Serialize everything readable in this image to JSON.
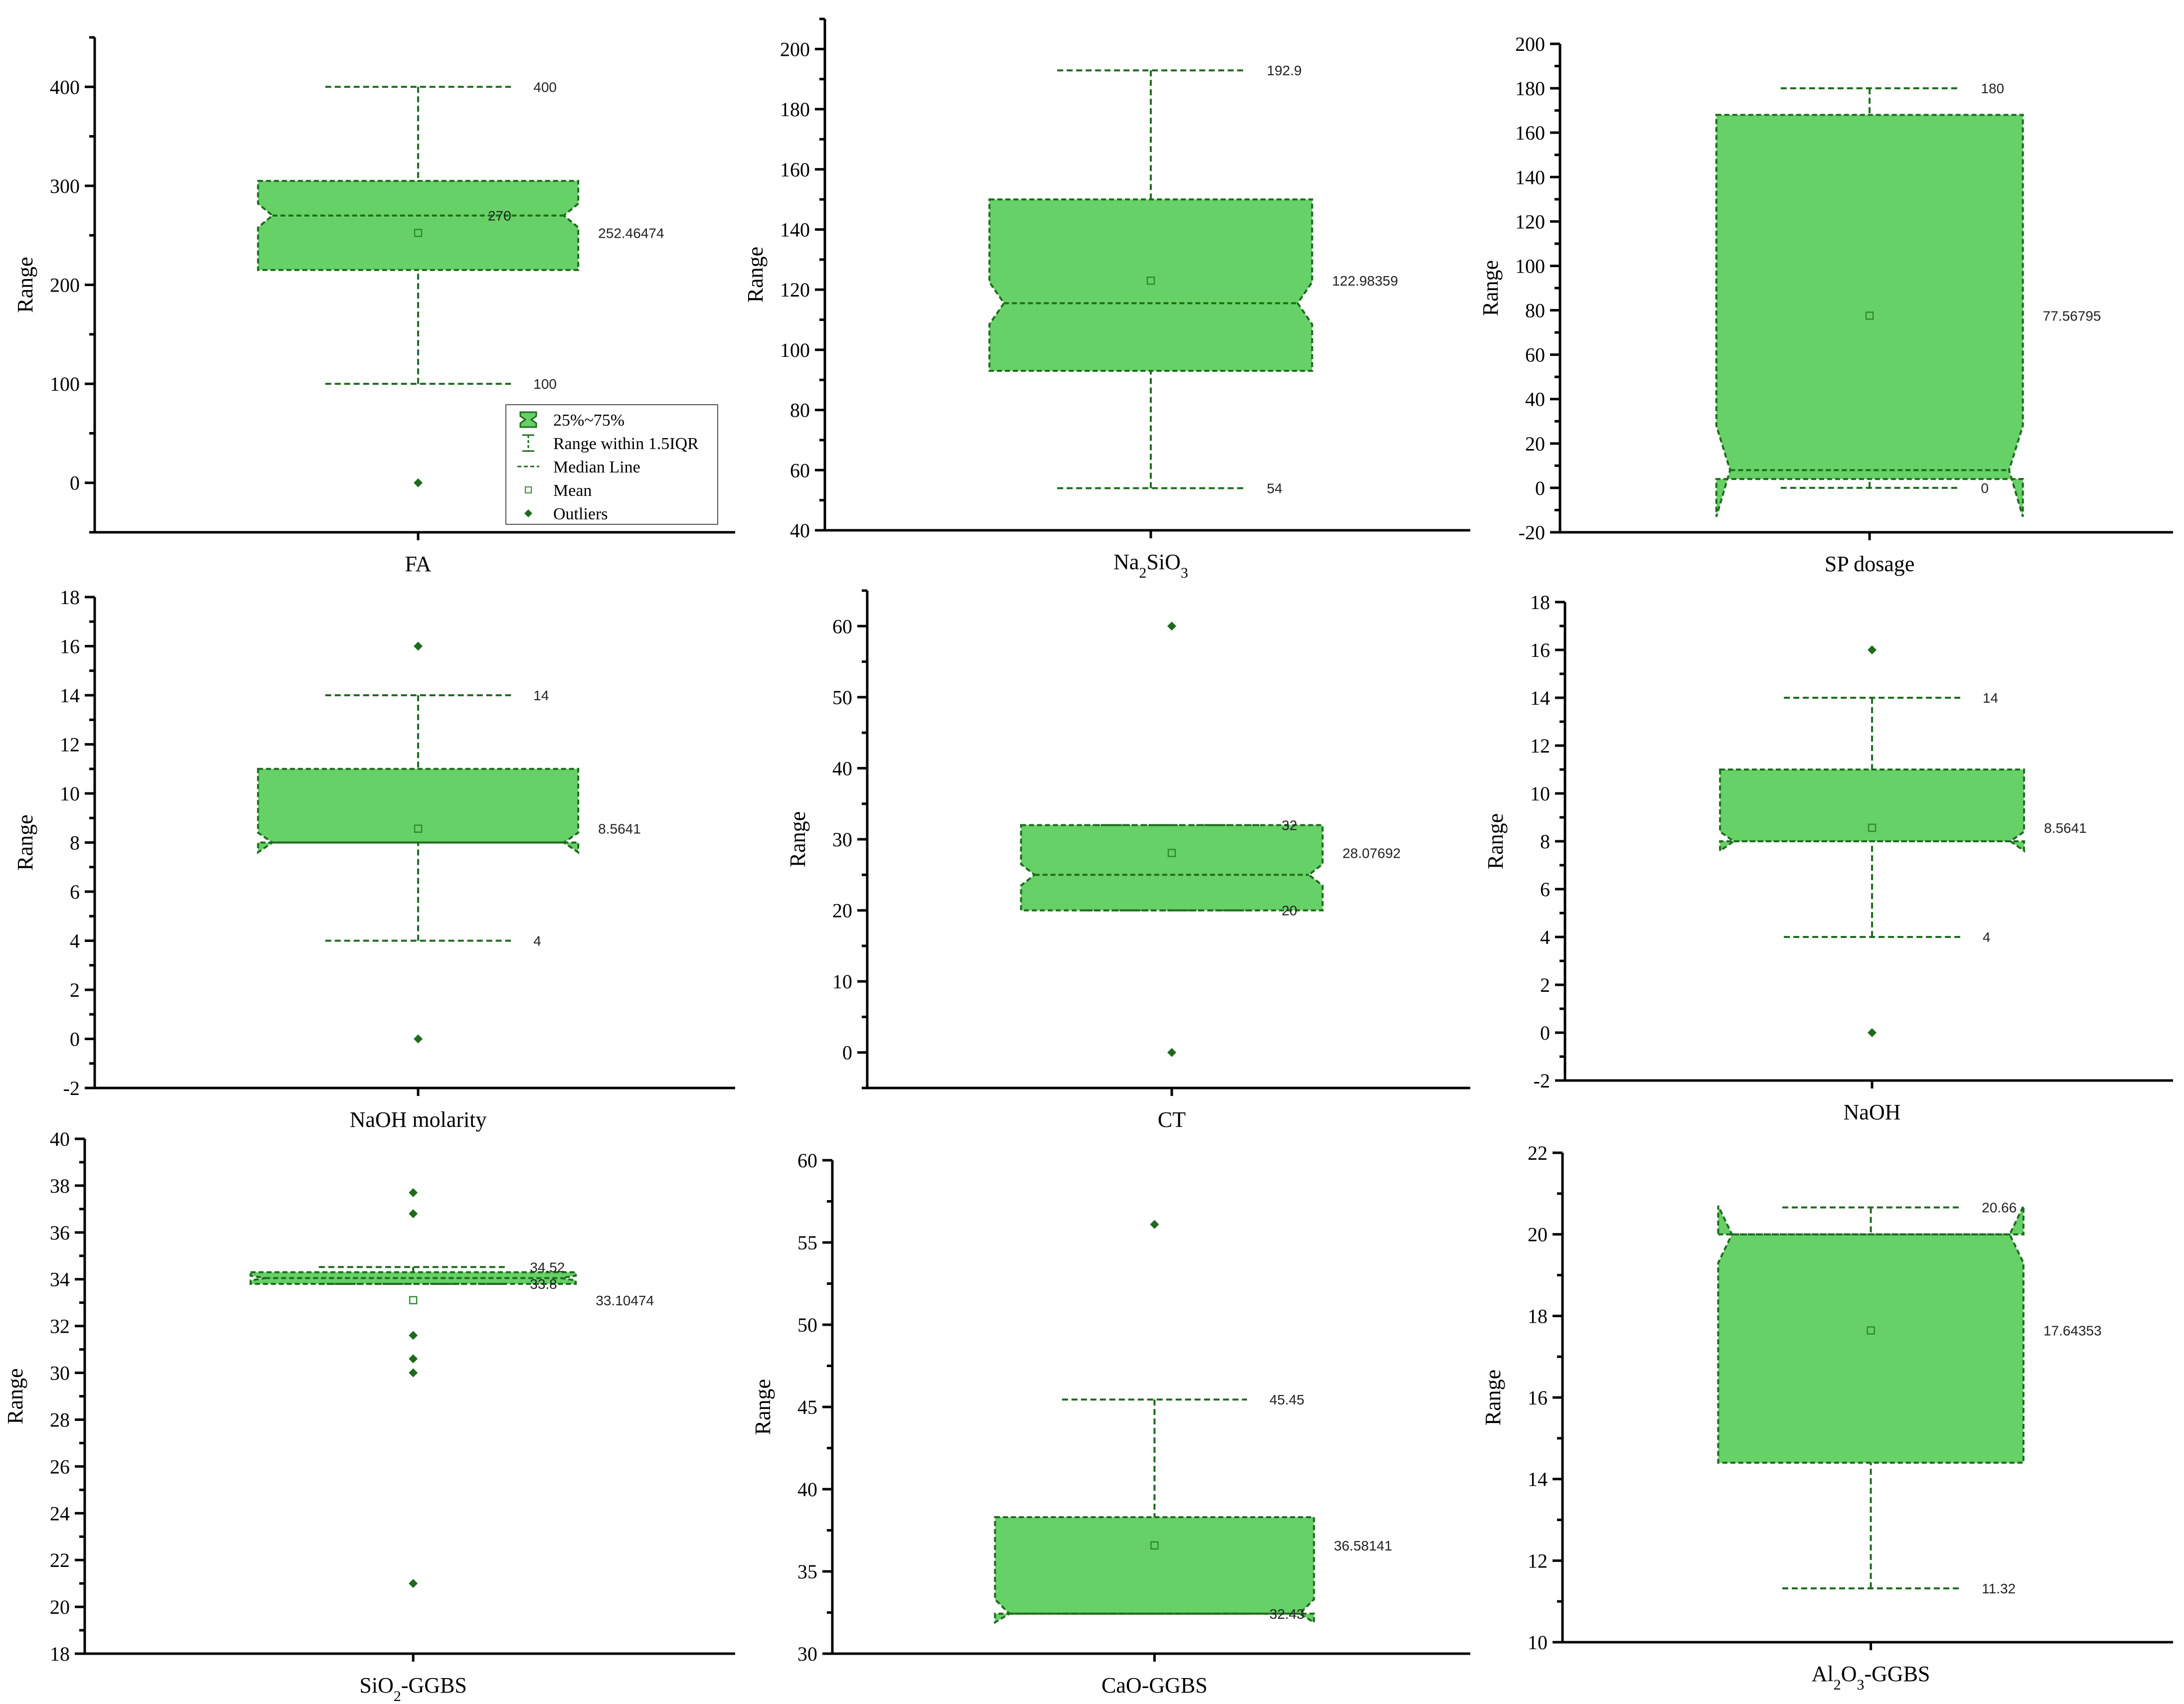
{
  "colors": {
    "fill": "#66D166",
    "stroke": "#1E6B1E",
    "mean": "#2E8B2E"
  },
  "legend": {
    "items": [
      {
        "label": "25%~75%",
        "symbol": "box"
      },
      {
        "label": "Range within 1.5IQR",
        "symbol": "whisker"
      },
      {
        "label": "Median Line",
        "symbol": "median"
      },
      {
        "label": "Mean",
        "symbol": "mean"
      },
      {
        "label": "Outliers",
        "symbol": "outlier"
      }
    ]
  },
  "chart_data": [
    {
      "type": "box",
      "xlabel": "FA",
      "ylabel": "Range",
      "ylim": [
        -50,
        450
      ],
      "yticks": [
        0,
        100,
        200,
        300,
        400
      ],
      "q1": 215,
      "q3": 305,
      "median": 270,
      "notch_low": 258,
      "notch_high": 282,
      "mean": 252.46474,
      "whisker_low": 100,
      "whisker_high": 400,
      "outliers": [
        0
      ],
      "annotations": {
        "whisker_high": "400",
        "median": "270",
        "mean": "252.46474",
        "whisker_low": "100"
      }
    },
    {
      "type": "box",
      "xlabel": "Na2SiO3",
      "ylabel": "Range",
      "ylim": [
        40,
        210
      ],
      "yticks": [
        40,
        60,
        80,
        100,
        120,
        140,
        160,
        180,
        200
      ],
      "q1": 93,
      "q3": 150,
      "median": 115.5,
      "notch_low": 108.5,
      "notch_high": 122.5,
      "mean": 122.98359,
      "whisker_low": 54,
      "whisker_high": 192.9,
      "outliers": [],
      "annotations": {
        "whisker_high": "192.9",
        "mean": "122.98359",
        "whisker_low": "54"
      }
    },
    {
      "type": "box",
      "xlabel": "SP dosage",
      "ylabel": "Range",
      "ylim": [
        -20,
        200
      ],
      "yticks": [
        -20,
        0,
        20,
        40,
        60,
        80,
        100,
        120,
        140,
        160,
        180,
        200
      ],
      "q1": 4,
      "q3": 168,
      "median": 8,
      "notch_low": -13,
      "notch_high": 28,
      "mean": 77.56795,
      "whisker_low": 0,
      "whisker_high": 180,
      "outliers": [],
      "annotations": {
        "whisker_high": "180",
        "mean": "77.56795",
        "whisker_low": "0"
      }
    },
    {
      "type": "box",
      "xlabel": "NaOH molarity",
      "ylabel": "Range",
      "ylim": [
        -2,
        18
      ],
      "yticks": [
        -2,
        0,
        2,
        4,
        6,
        8,
        10,
        12,
        14,
        16,
        18
      ],
      "q1": 8,
      "q3": 11,
      "median": 8,
      "notch_low": 7.6,
      "notch_high": 8.4,
      "mean": 8.5641,
      "whisker_low": 4,
      "whisker_high": 14,
      "outliers": [
        0,
        16
      ],
      "annotations": {
        "whisker_high": "14",
        "mean": "8.5641",
        "whisker_low": "4"
      }
    },
    {
      "type": "box",
      "xlabel": "CT",
      "ylabel": "Range",
      "ylim": [
        -5,
        65
      ],
      "yticks": [
        0,
        10,
        20,
        30,
        40,
        50,
        60
      ],
      "q1": 20,
      "q3": 32,
      "median": 25,
      "notch_low": 23.5,
      "notch_high": 26.5,
      "mean": 28.07692,
      "whisker_low": 20,
      "whisker_high": 32,
      "outliers": [
        0,
        60
      ],
      "annotations": {
        "whisker_high": "32",
        "mean": "28.07692",
        "whisker_low": "20"
      }
    },
    {
      "type": "box",
      "xlabel": "NaOH",
      "ylabel": "Range",
      "ylim": [
        -2,
        18
      ],
      "yticks": [
        -2,
        0,
        2,
        4,
        6,
        8,
        10,
        12,
        14,
        16,
        18
      ],
      "q1": 8,
      "q3": 11,
      "median": 8,
      "notch_low": 7.6,
      "notch_high": 8.4,
      "mean": 8.5641,
      "whisker_low": 4,
      "whisker_high": 14,
      "outliers": [
        0,
        16
      ],
      "annotations": {
        "whisker_high": "14",
        "mean": "8.5641",
        "whisker_low": "4"
      }
    },
    {
      "type": "box",
      "xlabel": "SiO2-GGBS",
      "ylabel": "Range",
      "ylim": [
        18,
        40
      ],
      "yticks": [
        18,
        20,
        22,
        24,
        26,
        28,
        30,
        32,
        34,
        36,
        38,
        40
      ],
      "q1": 33.8,
      "q3": 34.3,
      "median": 34.05,
      "notch_low": 33.95,
      "notch_high": 34.15,
      "mean": 33.10474,
      "whisker_low": 33.8,
      "whisker_high": 34.52,
      "outliers": [
        21,
        30,
        30.6,
        31.6,
        36.8,
        37.7
      ],
      "annotations": {
        "whisker_high": "34.52",
        "whisker_low": "33.8",
        "mean": "33.10474"
      }
    },
    {
      "type": "box",
      "xlabel": "CaO-GGBS",
      "ylabel": "Range",
      "ylim": [
        30,
        60
      ],
      "yticks": [
        30,
        35,
        40,
        45,
        50,
        55,
        60
      ],
      "q1": 32.43,
      "q3": 38.3,
      "median": 32.43,
      "notch_low": 31.9,
      "notch_high": 33.3,
      "mean": 36.58141,
      "whisker_low": 32.43,
      "whisker_high": 45.45,
      "outliers": [
        56.1
      ],
      "annotations": {
        "whisker_high": "45.45",
        "mean": "36.58141",
        "whisker_low": "32.43"
      }
    },
    {
      "type": "box",
      "xlabel": "Al2O3-GGBS",
      "ylabel": "Range",
      "ylim": [
        10,
        22
      ],
      "yticks": [
        10,
        12,
        14,
        16,
        18,
        20,
        22
      ],
      "q1": 14.4,
      "q3": 20,
      "median": 20,
      "notch_low": 19.3,
      "notch_high": 20.7,
      "mean": 17.64353,
      "whisker_low": 11.32,
      "whisker_high": 20.66,
      "outliers": [],
      "annotations": {
        "whisker_high": "20.66",
        "mean": "17.64353",
        "whisker_low": "11.32"
      }
    }
  ]
}
